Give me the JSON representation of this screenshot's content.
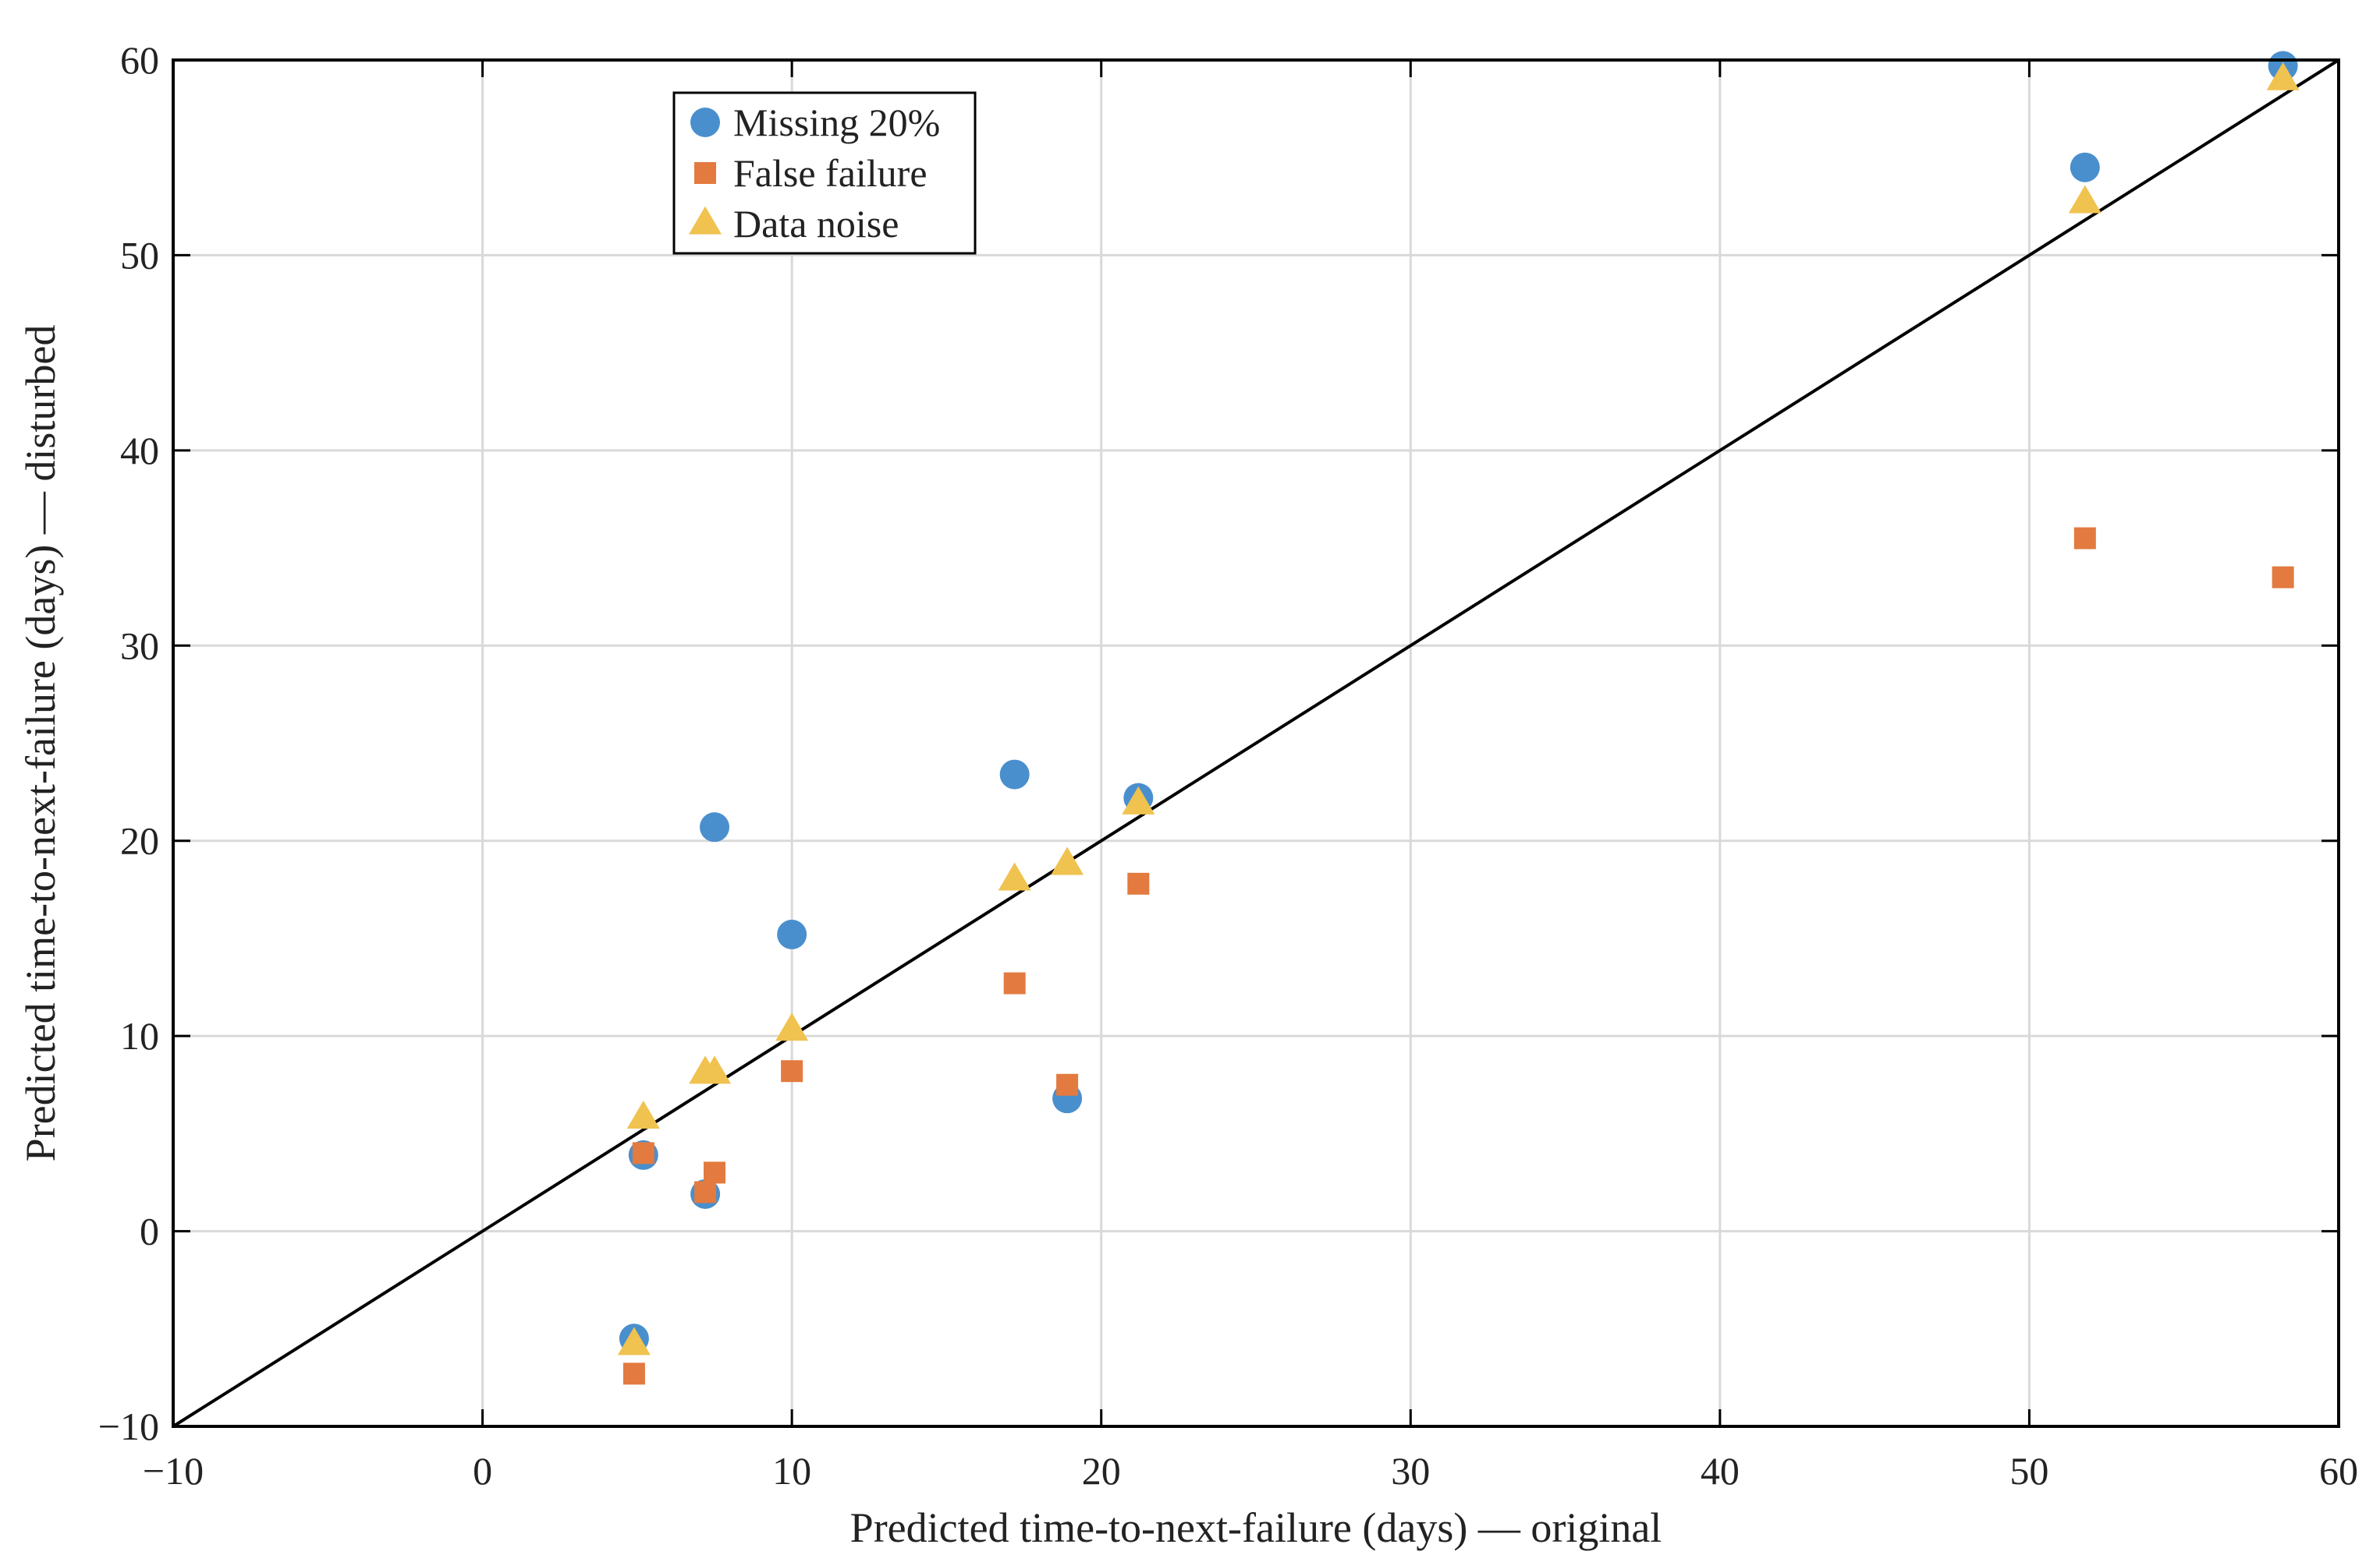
{
  "chart_data": {
    "type": "scatter",
    "title": "",
    "xlabel": "Predicted time-to-next-failure (days) — original",
    "ylabel": "Predicted time-to-next-failure (days) — disturbed",
    "xlim": [
      -10,
      60
    ],
    "ylim": [
      -10,
      60
    ],
    "xticks": [
      -10,
      0,
      10,
      20,
      30,
      40,
      50,
      60
    ],
    "yticks": [
      -10,
      0,
      10,
      20,
      30,
      40,
      50,
      60
    ],
    "xtick_labels": [
      "−10",
      "0",
      "10",
      "20",
      "30",
      "40",
      "50",
      "60"
    ],
    "ytick_labels": [
      "−10",
      "0",
      "10",
      "20",
      "30",
      "40",
      "50",
      "60"
    ],
    "grid": true,
    "legend_position": "top-left",
    "reference_line": {
      "type": "identity",
      "x": [
        -10,
        60
      ],
      "y": [
        -10,
        60
      ],
      "color": "#000000"
    },
    "series": [
      {
        "name": "Missing 20%",
        "marker": "circle",
        "color": "#4a8fcd",
        "x": [
          4.9,
          5.2,
          7.2,
          7.5,
          10.0,
          17.2,
          18.9,
          21.2,
          51.8,
          58.2
        ],
        "y": [
          -5.5,
          3.9,
          1.9,
          20.7,
          15.2,
          23.4,
          6.8,
          22.2,
          54.5,
          59.7
        ]
      },
      {
        "name": "False failure",
        "marker": "square",
        "color": "#e37a3f",
        "x": [
          4.9,
          5.2,
          7.2,
          7.5,
          10.0,
          17.2,
          18.9,
          21.2,
          51.8,
          58.2
        ],
        "y": [
          -7.3,
          4.0,
          2.0,
          3.0,
          8.2,
          12.7,
          7.5,
          17.8,
          35.5,
          33.5
        ]
      },
      {
        "name": "Data noise",
        "marker": "triangle",
        "color": "#f0c24f",
        "x": [
          4.9,
          5.2,
          7.2,
          7.5,
          10.0,
          17.2,
          18.9,
          21.2,
          51.8,
          58.2
        ],
        "y": [
          -5.8,
          5.8,
          8.1,
          8.1,
          10.3,
          18.0,
          18.8,
          21.9,
          52.7,
          59.0
        ]
      }
    ]
  }
}
